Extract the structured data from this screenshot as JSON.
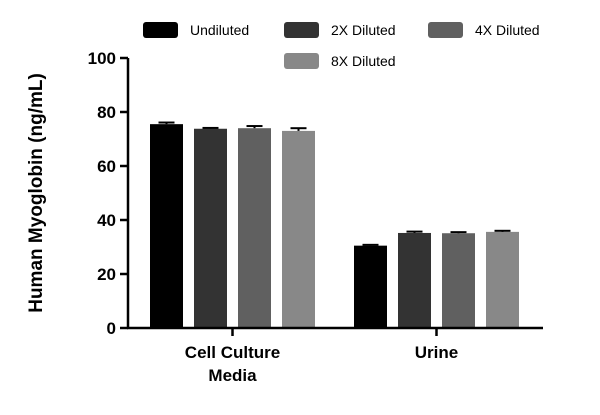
{
  "chart_data": {
    "type": "bar",
    "ylabel": "Human Myoglobin (ng/mL)",
    "xlabel": "",
    "ylim": [
      0,
      100
    ],
    "yticks": [
      0,
      20,
      40,
      60,
      80,
      100
    ],
    "categories": [
      {
        "lines": [
          "Cell Culture",
          "Media"
        ]
      },
      {
        "lines": [
          "Urine"
        ]
      }
    ],
    "series": [
      {
        "name": "Undiluted",
        "color": "#000000",
        "values": [
          75.5,
          30.5
        ],
        "errors": [
          0.6,
          0.3
        ]
      },
      {
        "name": "2X Diluted",
        "color": "#333333",
        "values": [
          73.8,
          35.2
        ],
        "errors": [
          0.3,
          0.5
        ]
      },
      {
        "name": "4X Diluted",
        "color": "#606060",
        "values": [
          74.0,
          35.1
        ],
        "errors": [
          0.8,
          0.4
        ]
      },
      {
        "name": "8X Diluted",
        "color": "#888888",
        "values": [
          73.0,
          35.6
        ],
        "errors": [
          1.0,
          0.4
        ]
      }
    ],
    "legend_position": "top",
    "grid": false
  }
}
